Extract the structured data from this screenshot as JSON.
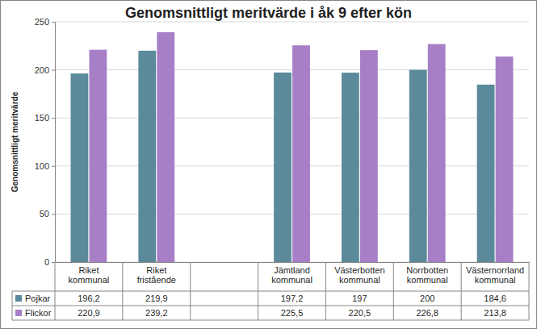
{
  "chart_data": {
    "type": "bar",
    "title": "Genomsnittligt meritvärde i åk 9 efter kön",
    "ylabel": "Genomsnittligt meritvärde",
    "categories": [
      "Riket kommunal",
      "Riket fristående",
      null,
      "Jämtland kommunal",
      "Västerbotten kommunal",
      "Norrbotten kommunal",
      "Västernorrland kommunal"
    ],
    "series": [
      {
        "name": "Pojkar",
        "color": "#5b8a9b",
        "values": [
          196.2,
          219.9,
          null,
          197.2,
          197,
          200,
          184.6
        ],
        "value_labels": [
          "196,2",
          "219,9",
          null,
          "197,2",
          "197",
          "200",
          "184,6"
        ]
      },
      {
        "name": "Flickor",
        "color": "#a77fc6",
        "values": [
          220.9,
          239.2,
          null,
          225.5,
          220.5,
          226.8,
          213.8
        ],
        "value_labels": [
          "220,9",
          "239,2",
          null,
          "225,5",
          "220,5",
          "226,8",
          "213,8"
        ]
      }
    ],
    "ylim": [
      0,
      250
    ],
    "yticks": [
      0,
      50,
      100,
      150,
      200,
      250
    ],
    "grid": true,
    "legend": "bottom"
  }
}
